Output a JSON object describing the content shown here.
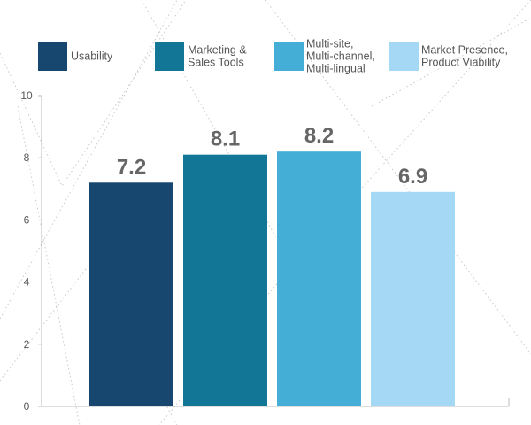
{
  "chart_data": {
    "type": "bar",
    "title": "",
    "xlabel": "",
    "ylabel": "",
    "categories": [
      "Usability",
      "Marketing & Sales Tools",
      "Multi-site, Multi-channel, Multi-lingual",
      "Market Presence, Product Viability"
    ],
    "values": [
      7.2,
      8.1,
      8.2,
      6.9
    ],
    "value_labels": [
      "7.2",
      "8.1",
      "8.2",
      "6.9"
    ],
    "colors": [
      "#17466f",
      "#127796",
      "#45aed6",
      "#a4d8f4"
    ],
    "legend": [
      {
        "lines": [
          "Usability"
        ],
        "color": "#17466f"
      },
      {
        "lines": [
          "Marketing &",
          "Sales Tools"
        ],
        "color": "#127796"
      },
      {
        "lines": [
          "Multi-site,",
          "Multi-channel,",
          "Multi-lingual"
        ],
        "color": "#45aed6"
      },
      {
        "lines": [
          "Market Presence,",
          "Product Viability"
        ],
        "color": "#a4d8f4"
      }
    ],
    "legend_position": "top",
    "ylim": [
      0,
      10
    ],
    "yticks": [
      0,
      2,
      4,
      6,
      8,
      10
    ],
    "grid": false
  }
}
